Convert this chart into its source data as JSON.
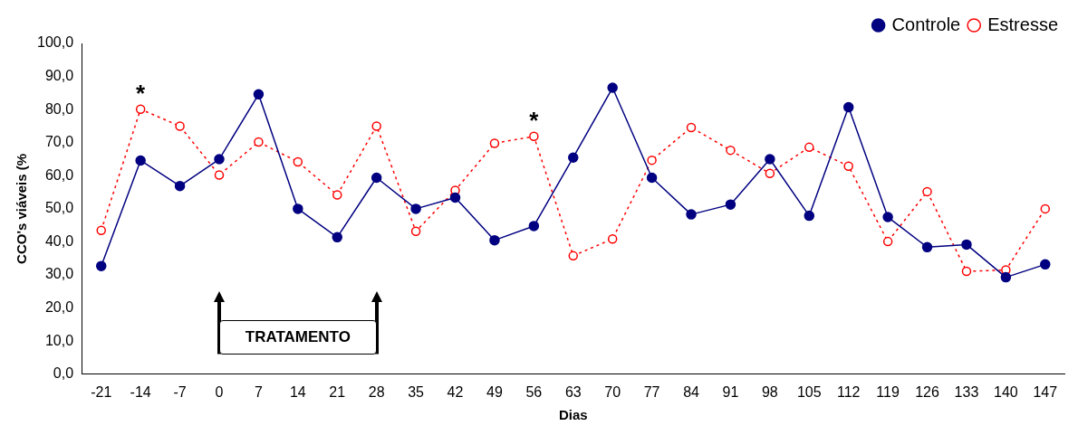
{
  "chart_data": {
    "type": "line",
    "xlabel": "Dias",
    "ylabel": "CCO's viáveis (%",
    "categories": [
      "-21",
      "-14",
      "-7",
      "0",
      "7",
      "14",
      "21",
      "28",
      "35",
      "42",
      "49",
      "56",
      "63",
      "70",
      "77",
      "84",
      "91",
      "98",
      "105",
      "112",
      "119",
      "126",
      "133",
      "140",
      "147"
    ],
    "series": [
      {
        "name": "Controle",
        "color": "#000080",
        "line_style": "solid",
        "values": [
          32.7,
          64.6,
          56.9,
          65.0,
          84.6,
          50.0,
          41.4,
          59.4,
          50.0,
          53.4,
          40.5,
          44.8,
          65.5,
          86.6,
          59.4,
          48.3,
          51.3,
          65.0,
          47.9,
          80.7,
          47.5,
          38.4,
          39.2,
          29.3,
          33.2
        ]
      },
      {
        "name": "Estresse",
        "color": "#ff0000",
        "line_style": "dotted",
        "values": [
          43.5,
          80.1,
          75.0,
          60.2,
          70.2,
          64.2,
          54.2,
          75.0,
          43.2,
          55.6,
          69.8,
          71.9,
          35.8,
          40.9,
          64.7,
          74.6,
          67.7,
          60.7,
          68.6,
          62.9,
          40.1,
          55.2,
          31.1,
          31.5,
          50.0
        ]
      }
    ],
    "ylim": [
      0,
      100
    ],
    "yticks": [
      {
        "value": 0,
        "label": "0,0"
      },
      {
        "value": 10,
        "label": "10,0"
      },
      {
        "value": 20,
        "label": "20,0"
      },
      {
        "value": 30,
        "label": "30,0"
      },
      {
        "value": 40,
        "label": "40,0"
      },
      {
        "value": 50,
        "label": "50,0"
      },
      {
        "value": 60,
        "label": "60,0"
      },
      {
        "value": 70,
        "label": "70,0"
      },
      {
        "value": 80,
        "label": "80,0"
      },
      {
        "value": 90,
        "label": "90,0"
      },
      {
        "value": 100,
        "label": "100,0"
      }
    ],
    "grid": false,
    "legend": "top right",
    "marker": "circle",
    "annotations": [
      {
        "text": "*",
        "x": "-14",
        "y": 80.1
      },
      {
        "text": "*",
        "x": "56",
        "y": 71.9
      }
    ],
    "bands": [
      {
        "axis": "x",
        "from": "0",
        "to": "28",
        "label": "TRATAMENTO"
      }
    ]
  }
}
